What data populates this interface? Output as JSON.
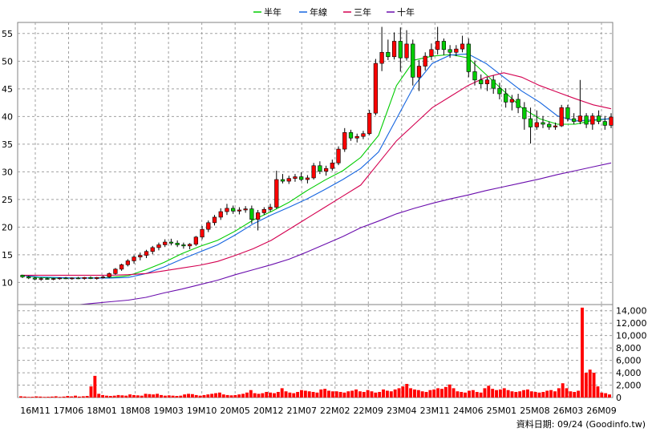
{
  "legend": [
    {
      "label": "半年",
      "color": "#00cc00"
    },
    {
      "label": "年線",
      "color": "#1565e0"
    },
    {
      "label": "三年",
      "color": "#d40050"
    },
    {
      "label": "十年",
      "color": "#6a0dad"
    }
  ],
  "footer": "資料日期: 09/24 (Goodinfo.tw)",
  "chart_data": [
    {
      "type": "candlestick",
      "title": "",
      "ylim": [
        6,
        57
      ],
      "yticks": [
        10,
        15,
        20,
        25,
        30,
        35,
        40,
        45,
        50,
        55
      ],
      "grid": true,
      "legend_position": "top",
      "x_tick_labels": [
        "16M11",
        "17M06",
        "18M01",
        "18M08",
        "19M03",
        "19M10",
        "20M05",
        "20M12",
        "21M07",
        "22M02",
        "22M09",
        "23M04",
        "23M11",
        "24M06",
        "25M01",
        "25M08",
        "26M03",
        "26M09"
      ],
      "candles": [
        {
          "o": 11.3,
          "h": 11.4,
          "l": 10.8,
          "c": 11.0
        },
        {
          "o": 11.0,
          "h": 11.2,
          "l": 10.6,
          "c": 10.8
        },
        {
          "o": 10.8,
          "h": 11.0,
          "l": 10.4,
          "c": 10.6
        },
        {
          "o": 10.6,
          "h": 10.9,
          "l": 10.3,
          "c": 10.7
        },
        {
          "o": 10.7,
          "h": 10.9,
          "l": 10.5,
          "c": 10.6
        },
        {
          "o": 10.6,
          "h": 10.8,
          "l": 10.4,
          "c": 10.7
        },
        {
          "o": 10.7,
          "h": 10.9,
          "l": 10.5,
          "c": 10.8
        },
        {
          "o": 10.8,
          "h": 11.0,
          "l": 10.6,
          "c": 10.7
        },
        {
          "o": 10.7,
          "h": 10.9,
          "l": 10.5,
          "c": 10.8
        },
        {
          "o": 10.8,
          "h": 11.0,
          "l": 10.6,
          "c": 10.7
        },
        {
          "o": 10.7,
          "h": 11.0,
          "l": 10.5,
          "c": 10.9
        },
        {
          "o": 10.9,
          "h": 11.1,
          "l": 10.6,
          "c": 10.7
        },
        {
          "o": 10.7,
          "h": 11.0,
          "l": 10.5,
          "c": 10.9
        },
        {
          "o": 10.9,
          "h": 11.2,
          "l": 10.7,
          "c": 11.0
        },
        {
          "o": 11.0,
          "h": 11.8,
          "l": 10.8,
          "c": 11.6
        },
        {
          "o": 11.6,
          "h": 12.6,
          "l": 11.4,
          "c": 12.4
        },
        {
          "o": 12.4,
          "h": 13.4,
          "l": 12.1,
          "c": 13.2
        },
        {
          "o": 13.2,
          "h": 14.2,
          "l": 12.9,
          "c": 13.9
        },
        {
          "o": 13.9,
          "h": 14.9,
          "l": 13.4,
          "c": 14.6
        },
        {
          "o": 14.6,
          "h": 15.4,
          "l": 14.0,
          "c": 14.9
        },
        {
          "o": 14.9,
          "h": 15.9,
          "l": 14.4,
          "c": 15.6
        },
        {
          "o": 15.6,
          "h": 16.6,
          "l": 15.1,
          "c": 16.3
        },
        {
          "o": 16.3,
          "h": 17.2,
          "l": 15.8,
          "c": 16.8
        },
        {
          "o": 16.8,
          "h": 17.8,
          "l": 16.4,
          "c": 17.3
        },
        {
          "o": 17.3,
          "h": 17.9,
          "l": 16.7,
          "c": 17.1
        },
        {
          "o": 17.1,
          "h": 17.6,
          "l": 16.4,
          "c": 16.8
        },
        {
          "o": 16.8,
          "h": 17.2,
          "l": 16.1,
          "c": 16.6
        },
        {
          "o": 16.6,
          "h": 17.1,
          "l": 16.0,
          "c": 16.9
        },
        {
          "o": 16.9,
          "h": 18.4,
          "l": 16.6,
          "c": 18.2
        },
        {
          "o": 18.2,
          "h": 20.2,
          "l": 17.8,
          "c": 19.6
        },
        {
          "o": 19.6,
          "h": 21.2,
          "l": 19.1,
          "c": 20.8
        },
        {
          "o": 20.8,
          "h": 22.2,
          "l": 20.3,
          "c": 21.8
        },
        {
          "o": 21.8,
          "h": 23.4,
          "l": 21.3,
          "c": 22.8
        },
        {
          "o": 22.8,
          "h": 24.2,
          "l": 22.2,
          "c": 23.4
        },
        {
          "o": 23.4,
          "h": 23.9,
          "l": 22.4,
          "c": 22.9
        },
        {
          "o": 22.9,
          "h": 23.6,
          "l": 22.3,
          "c": 23.1
        },
        {
          "o": 23.1,
          "h": 23.8,
          "l": 22.6,
          "c": 23.3
        },
        {
          "o": 23.3,
          "h": 23.9,
          "l": 20.6,
          "c": 21.4
        },
        {
          "o": 21.4,
          "h": 23.1,
          "l": 19.4,
          "c": 22.6
        },
        {
          "o": 22.6,
          "h": 23.6,
          "l": 22.2,
          "c": 23.2
        },
        {
          "o": 23.2,
          "h": 24.2,
          "l": 22.8,
          "c": 23.6
        },
        {
          "o": 23.6,
          "h": 30.2,
          "l": 23.3,
          "c": 28.6
        },
        {
          "o": 28.6,
          "h": 29.6,
          "l": 27.9,
          "c": 28.3
        },
        {
          "o": 28.3,
          "h": 29.3,
          "l": 27.8,
          "c": 28.8
        },
        {
          "o": 28.8,
          "h": 29.6,
          "l": 28.2,
          "c": 29.1
        },
        {
          "o": 29.1,
          "h": 29.9,
          "l": 28.3,
          "c": 28.6
        },
        {
          "o": 28.6,
          "h": 29.4,
          "l": 27.9,
          "c": 28.9
        },
        {
          "o": 28.9,
          "h": 31.6,
          "l": 28.6,
          "c": 31.1
        },
        {
          "o": 31.1,
          "h": 31.9,
          "l": 29.6,
          "c": 30.1
        },
        {
          "o": 30.1,
          "h": 31.1,
          "l": 29.3,
          "c": 30.6
        },
        {
          "o": 30.6,
          "h": 32.2,
          "l": 30.2,
          "c": 31.6
        },
        {
          "o": 31.6,
          "h": 34.6,
          "l": 31.2,
          "c": 34.1
        },
        {
          "o": 34.1,
          "h": 37.9,
          "l": 33.6,
          "c": 37.1
        },
        {
          "o": 37.1,
          "h": 37.6,
          "l": 35.6,
          "c": 36.1
        },
        {
          "o": 36.1,
          "h": 36.9,
          "l": 35.3,
          "c": 36.4
        },
        {
          "o": 36.4,
          "h": 37.4,
          "l": 35.9,
          "c": 36.9
        },
        {
          "o": 36.9,
          "h": 41.2,
          "l": 36.6,
          "c": 40.6
        },
        {
          "o": 40.6,
          "h": 50.4,
          "l": 40.2,
          "c": 49.6
        },
        {
          "o": 49.6,
          "h": 56.2,
          "l": 48.2,
          "c": 51.6
        },
        {
          "o": 51.6,
          "h": 53.9,
          "l": 50.2,
          "c": 50.8
        },
        {
          "o": 50.8,
          "h": 55.2,
          "l": 50.3,
          "c": 53.6
        },
        {
          "o": 53.6,
          "h": 56.1,
          "l": 48.1,
          "c": 50.6
        },
        {
          "o": 50.6,
          "h": 55.6,
          "l": 50.1,
          "c": 53.1
        },
        {
          "o": 53.1,
          "h": 53.9,
          "l": 45.6,
          "c": 47.1
        },
        {
          "o": 47.1,
          "h": 50.2,
          "l": 44.6,
          "c": 49.1
        },
        {
          "o": 49.1,
          "h": 51.6,
          "l": 48.3,
          "c": 50.9
        },
        {
          "o": 50.9,
          "h": 53.2,
          "l": 50.2,
          "c": 52.1
        },
        {
          "o": 52.1,
          "h": 56.2,
          "l": 51.2,
          "c": 53.6
        },
        {
          "o": 53.6,
          "h": 54.1,
          "l": 51.1,
          "c": 52.1
        },
        {
          "o": 52.1,
          "h": 52.9,
          "l": 50.6,
          "c": 51.6
        },
        {
          "o": 51.6,
          "h": 52.9,
          "l": 50.9,
          "c": 52.2
        },
        {
          "o": 52.2,
          "h": 54.6,
          "l": 51.6,
          "c": 53.1
        },
        {
          "o": 53.1,
          "h": 54.1,
          "l": 47.1,
          "c": 48.1
        },
        {
          "o": 48.1,
          "h": 50.1,
          "l": 45.6,
          "c": 46.6
        },
        {
          "o": 46.6,
          "h": 47.6,
          "l": 45.1,
          "c": 45.9
        },
        {
          "o": 45.9,
          "h": 47.1,
          "l": 44.6,
          "c": 46.6
        },
        {
          "o": 46.6,
          "h": 47.4,
          "l": 44.1,
          "c": 45.1
        },
        {
          "o": 45.1,
          "h": 46.1,
          "l": 43.1,
          "c": 44.1
        },
        {
          "o": 44.1,
          "h": 45.1,
          "l": 41.6,
          "c": 42.6
        },
        {
          "o": 42.6,
          "h": 43.9,
          "l": 41.1,
          "c": 43.1
        },
        {
          "o": 43.1,
          "h": 44.1,
          "l": 40.6,
          "c": 41.6
        },
        {
          "o": 41.6,
          "h": 42.6,
          "l": 37.6,
          "c": 39.6
        },
        {
          "o": 39.6,
          "h": 41.6,
          "l": 35.1,
          "c": 38.1
        },
        {
          "o": 38.1,
          "h": 41.1,
          "l": 37.6,
          "c": 38.9
        },
        {
          "o": 38.9,
          "h": 40.1,
          "l": 37.9,
          "c": 38.6
        },
        {
          "o": 38.6,
          "h": 39.1,
          "l": 37.6,
          "c": 38.1
        },
        {
          "o": 38.1,
          "h": 38.9,
          "l": 37.6,
          "c": 38.3
        },
        {
          "o": 38.3,
          "h": 42.1,
          "l": 38.1,
          "c": 41.6
        },
        {
          "o": 41.6,
          "h": 42.1,
          "l": 39.1,
          "c": 39.6
        },
        {
          "o": 39.6,
          "h": 40.6,
          "l": 38.6,
          "c": 39.1
        },
        {
          "o": 39.1,
          "h": 46.6,
          "l": 38.6,
          "c": 40.1
        },
        {
          "o": 40.1,
          "h": 40.6,
          "l": 37.9,
          "c": 38.6
        },
        {
          "o": 38.6,
          "h": 40.6,
          "l": 37.6,
          "c": 40.1
        },
        {
          "o": 40.1,
          "h": 41.1,
          "l": 38.6,
          "c": 39.1
        },
        {
          "o": 39.1,
          "h": 40.1,
          "l": 37.6,
          "c": 38.4
        },
        {
          "o": 38.4,
          "h": 40.6,
          "l": 37.9,
          "c": 39.9
        }
      ],
      "ma_series": [
        {
          "name": "半年",
          "color": "#00cc00",
          "values": [
            11.3,
            10.9,
            10.8,
            10.8,
            10.8,
            10.9,
            11.2,
            12.3,
            13.6,
            15.2,
            16.5,
            17.6,
            19.3,
            21.3,
            22.8,
            24.5,
            26.6,
            28.5,
            30.2,
            32.6,
            36.6,
            45.6,
            50.2,
            50.9,
            51.2,
            50.6,
            47.6,
            44.6,
            41.6,
            39.6,
            38.6,
            38.6,
            39.3,
            39.6
          ]
        },
        {
          "name": "年線",
          "color": "#1565e0",
          "values": [
            11.3,
            11.0,
            10.9,
            10.8,
            10.8,
            10.8,
            10.9,
            11.6,
            12.8,
            14.2,
            15.5,
            16.8,
            18.6,
            20.6,
            22.2,
            23.6,
            25.1,
            26.8,
            28.6,
            30.6,
            33.6,
            39.6,
            45.6,
            49.6,
            51.1,
            51.3,
            49.6,
            47.1,
            44.6,
            42.6,
            40.1,
            39.2,
            39.4,
            39.6
          ]
        },
        {
          "name": "三年",
          "color": "#d40050",
          "values": [
            11.3,
            11.3,
            11.3,
            11.3,
            11.3,
            11.3,
            11.4,
            11.6,
            12.1,
            12.6,
            13.1,
            13.8,
            14.9,
            16.1,
            17.6,
            19.6,
            21.6,
            23.6,
            25.6,
            27.6,
            31.6,
            35.6,
            38.6,
            41.6,
            43.6,
            45.6,
            47.1,
            47.9,
            47.1,
            45.6,
            44.4,
            43.2,
            42.1,
            41.4
          ]
        },
        {
          "name": "十年",
          "color": "#6a0dad",
          "values": [
            5.1,
            5.4,
            5.7,
            5.9,
            6.2,
            6.5,
            6.8,
            7.3,
            8.1,
            8.8,
            9.6,
            10.4,
            11.4,
            12.3,
            13.2,
            14.2,
            15.5,
            16.9,
            18.3,
            19.9,
            21.1,
            22.4,
            23.4,
            24.3,
            25.1,
            25.8,
            26.6,
            27.3,
            28.0,
            28.7,
            29.5,
            30.2,
            30.9,
            31.6
          ]
        }
      ]
    },
    {
      "type": "bar",
      "title": "",
      "ylim": [
        0,
        15000
      ],
      "yticks": [
        "14,000",
        "12,000",
        "10,000",
        "8,000",
        "6,000",
        "4,000",
        "2,000",
        "0"
      ],
      "ytick_values": [
        14000,
        12000,
        10000,
        8000,
        6000,
        4000,
        2000,
        0
      ],
      "bar_color": "#ff0000",
      "values": [
        200,
        150,
        100,
        120,
        180,
        150,
        100,
        120,
        150,
        200,
        100,
        150,
        250,
        180,
        300,
        150,
        200,
        250,
        1800,
        3500,
        600,
        400,
        300,
        250,
        300,
        400,
        350,
        300,
        500,
        400,
        350,
        300,
        600,
        550,
        500,
        600,
        400,
        300,
        350,
        300,
        250,
        300,
        500,
        600,
        550,
        400,
        300,
        400,
        500,
        600,
        700,
        800,
        500,
        400,
        350,
        400,
        500,
        600,
        800,
        1200,
        700,
        600,
        700,
        900,
        800,
        700,
        900,
        1500,
        1000,
        800,
        700,
        900,
        1200,
        1100,
        1000,
        900,
        800,
        1300,
        1400,
        1100,
        1000,
        1000,
        900,
        800,
        1000,
        1100,
        1300,
        1000,
        900,
        1200,
        1000,
        800,
        900,
        1300,
        1100,
        1000,
        1300,
        1500,
        1800,
        2200,
        1500,
        1300,
        1200,
        1000,
        900,
        1200,
        1300,
        1500,
        1400,
        1700,
        2100,
        1500,
        1000,
        900,
        800,
        1100,
        1200,
        900,
        800,
        1500,
        1900,
        1400,
        1200,
        1300,
        1500,
        1200,
        1000,
        900,
        1000,
        1200,
        1300,
        1000,
        900,
        800,
        900,
        1100,
        1200,
        1000,
        1500,
        2300,
        1500,
        1000,
        900,
        1100,
        14500,
        4000,
        4500,
        4000,
        1800,
        800,
        700,
        500
      ]
    }
  ]
}
